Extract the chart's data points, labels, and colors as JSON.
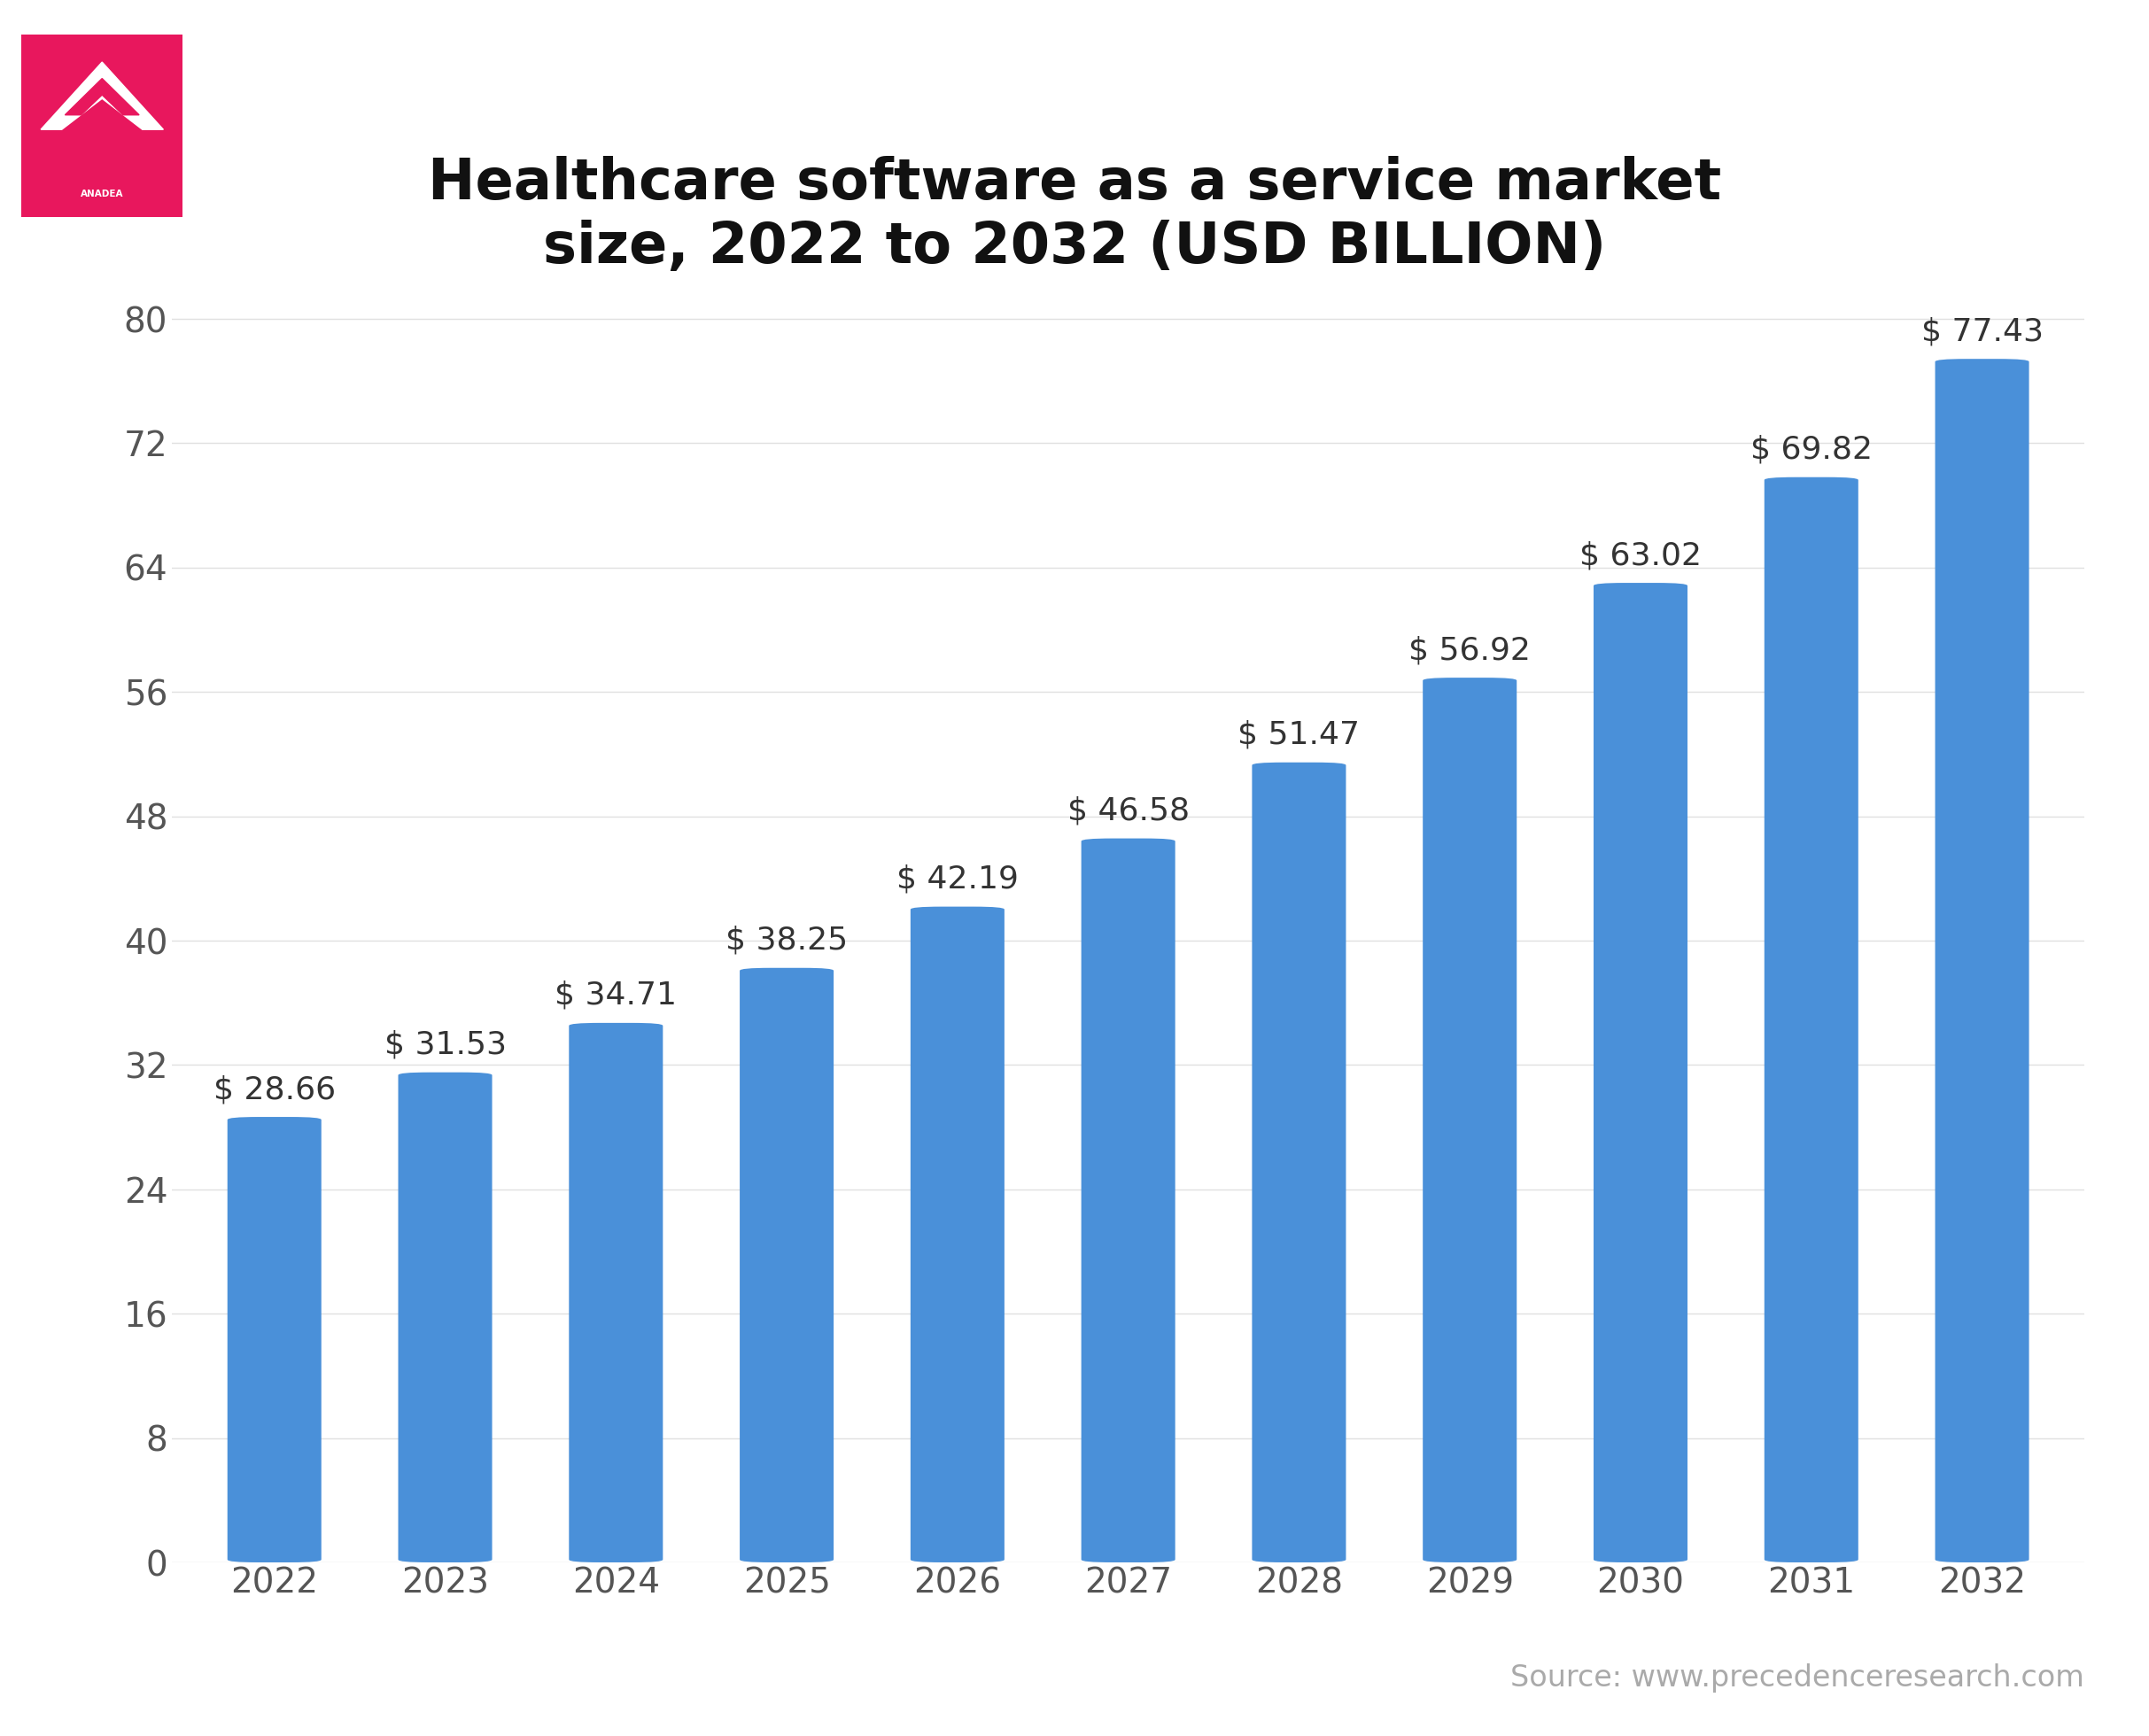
{
  "title": "Healthcare software as a service market\nsize, 2022 to 2032 (USD BILLION)",
  "years": [
    2022,
    2023,
    2024,
    2025,
    2026,
    2027,
    2028,
    2029,
    2030,
    2031,
    2032
  ],
  "values": [
    28.66,
    31.53,
    34.71,
    38.25,
    42.19,
    46.58,
    51.47,
    56.92,
    63.02,
    69.82,
    77.43
  ],
  "bar_color": "#4a90d9",
  "background_color": "#ffffff",
  "title_fontsize": 46,
  "tick_fontsize": 28,
  "label_fontsize": 26,
  "yticks": [
    0,
    8,
    16,
    24,
    32,
    40,
    48,
    56,
    64,
    72,
    80
  ],
  "ylim": [
    0,
    86
  ],
  "source_text": "Source: www.precedenceresearch.com",
  "source_fontsize": 24,
  "source_color": "#aaaaaa",
  "logo_color": "#e8175d",
  "logo_text": "ANADEA",
  "grid_color": "#e0e0e0",
  "axis_label_color": "#555555",
  "bar_label_color": "#333333"
}
